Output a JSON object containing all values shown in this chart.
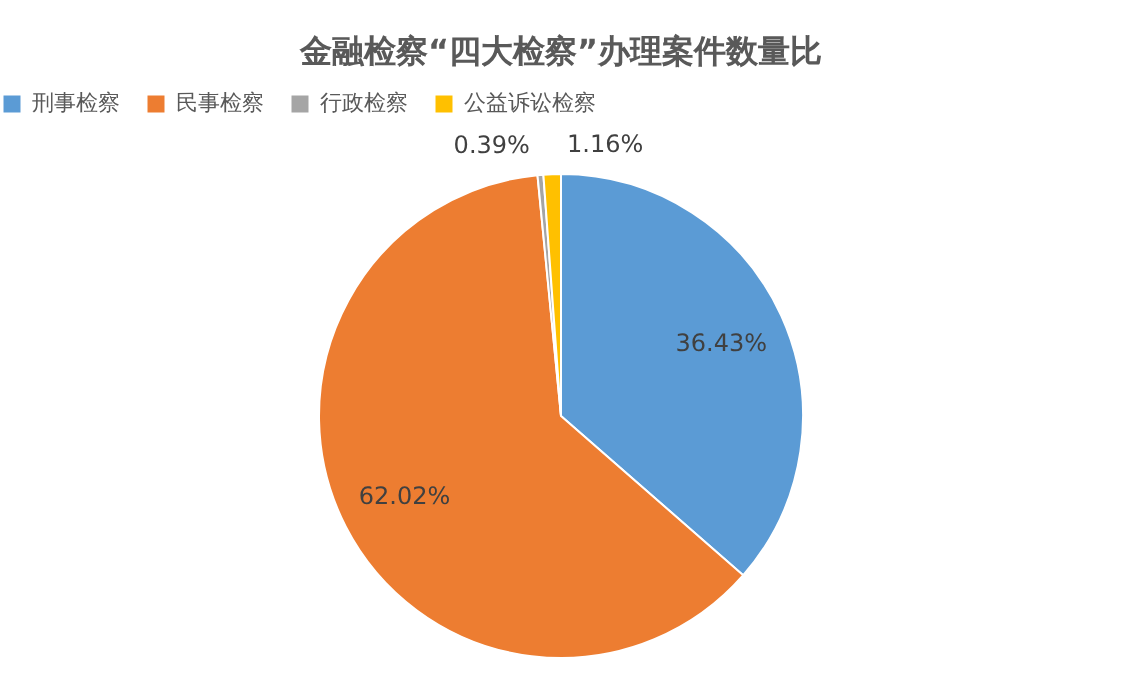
{
  "chart_data": {
    "type": "pie",
    "title": "金融检察“四大检察”办理案件数量比",
    "categories": [
      "刑事检察",
      "民事检察",
      "行政检察",
      "公益诉讼检察"
    ],
    "values": [
      36.43,
      62.02,
      0.39,
      1.16
    ],
    "colors": [
      "#5b9bd5",
      "#ed7d31",
      "#a5a5a5",
      "#ffc000"
    ],
    "value_labels": [
      "36.43%",
      "62.02%",
      "0.39%",
      "1.16%"
    ],
    "legend": "top"
  }
}
